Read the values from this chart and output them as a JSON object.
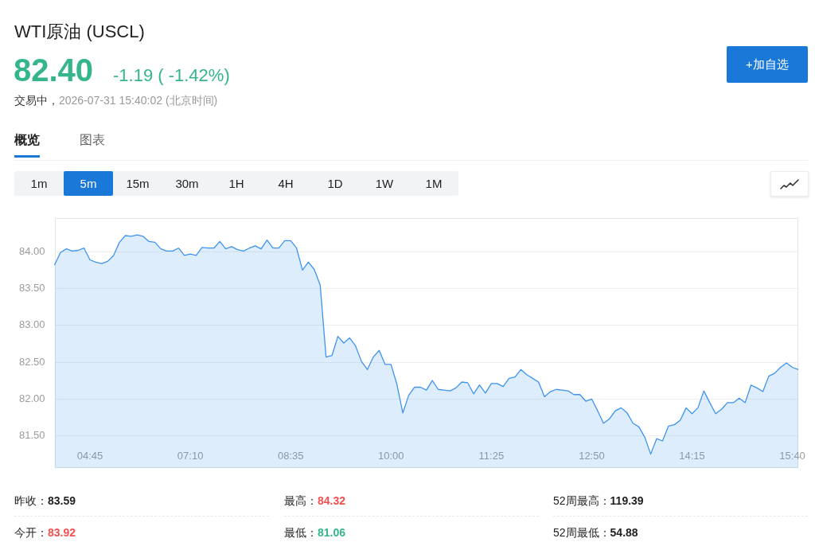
{
  "chart_data": {
    "type": "area",
    "title": "WTI原油 (USCL)",
    "annotations": [
      "82.40",
      "-1.19 ( -1.42%)",
      "交易中，",
      "2026-07-31 15:40:02 (北京时间)",
      "+加自选",
      "概览",
      "图表",
      "1m",
      "5m",
      "15m",
      "30m",
      "1H",
      "4H",
      "1D",
      "1W",
      "1M",
      "昨收：",
      "83.59",
      "最高：",
      "84.32",
      "52周最高：",
      "119.39",
      "今开：",
      "83.92",
      "最低：",
      "81.06",
      "52周最低：",
      "54.88"
    ],
    "categories": [
      null,
      null,
      null,
      null,
      null,
      null,
      "04:45",
      null,
      null,
      null,
      null,
      null,
      null,
      null,
      null,
      null,
      null,
      null,
      null,
      null,
      null,
      null,
      null,
      "07:10",
      null,
      null,
      null,
      null,
      null,
      null,
      null,
      null,
      null,
      null,
      null,
      null,
      null,
      null,
      null,
      null,
      "08:35",
      null,
      null,
      null,
      null,
      null,
      null,
      null,
      null,
      null,
      null,
      null,
      null,
      null,
      null,
      null,
      null,
      "10:00",
      null,
      null,
      null,
      null,
      null,
      null,
      null,
      null,
      null,
      null,
      null,
      null,
      null,
      null,
      null,
      null,
      "11:25",
      null,
      null,
      null,
      null,
      null,
      null,
      null,
      null,
      null,
      null,
      null,
      null,
      null,
      null,
      null,
      null,
      "12:50",
      null,
      null,
      null,
      null,
      null,
      null,
      null,
      null,
      null,
      null,
      null,
      null,
      null,
      null,
      null,
      null,
      "14:15",
      null,
      null,
      null,
      null,
      null,
      null,
      null,
      null,
      null,
      null,
      null,
      null,
      null,
      null,
      null,
      null,
      "15:40",
      null
    ],
    "series": [
      {
        "color": "#3d93ee",
        "values": [
          83.82,
          83.99,
          84.04,
          84.01,
          84.02,
          84.05,
          83.89,
          83.86,
          83.84,
          83.87,
          83.95,
          84.13,
          84.22,
          84.21,
          84.23,
          84.21,
          84.14,
          84.13,
          84.04,
          84.01,
          84.01,
          84.05,
          83.95,
          83.97,
          83.95,
          84.06,
          84.05,
          84.05,
          84.14,
          84.04,
          84.07,
          84.03,
          84.01,
          84.05,
          84.08,
          84.04,
          84.16,
          84.05,
          84.05,
          84.15,
          84.15,
          84.05,
          83.75,
          83.86,
          83.76,
          83.55,
          82.57,
          82.59,
          82.85,
          82.76,
          82.83,
          82.72,
          82.51,
          82.4,
          82.57,
          82.66,
          82.47,
          82.47,
          82.2,
          81.81,
          82.05,
          82.16,
          82.16,
          82.12,
          82.25,
          82.13,
          82.12,
          82.11,
          82.15,
          82.23,
          82.22,
          82.07,
          82.19,
          82.08,
          82.21,
          82.21,
          82.17,
          82.28,
          82.3,
          82.4,
          82.33,
          82.28,
          82.23,
          82.03,
          82.1,
          82.13,
          82.12,
          82.11,
          82.06,
          82.06,
          81.97,
          82.0,
          81.84,
          81.67,
          81.73,
          81.84,
          81.88,
          81.81,
          81.67,
          81.62,
          81.48,
          81.25,
          81.46,
          81.43,
          81.63,
          81.65,
          81.71,
          81.88,
          81.8,
          81.88,
          82.11,
          81.95,
          81.8,
          81.86,
          81.95,
          81.95,
          82.01,
          81.95,
          82.19,
          82.15,
          82.1,
          82.31,
          82.35,
          82.43,
          82.49,
          82.43,
          82.4
        ]
      }
    ],
    "ylim": [
      81.06,
      84.46
    ],
    "yticks": [
      {
        "value": 81.5,
        "label": "81.50"
      },
      {
        "value": 82,
        "label": "82.00"
      },
      {
        "value": 82.5,
        "label": "82.50"
      },
      {
        "value": 83,
        "label": "83.00"
      },
      {
        "value": 83.5,
        "label": "83.50"
      },
      {
        "value": 84,
        "label": "84.00"
      }
    ],
    "grid": "y",
    "marker": "none"
  }
}
